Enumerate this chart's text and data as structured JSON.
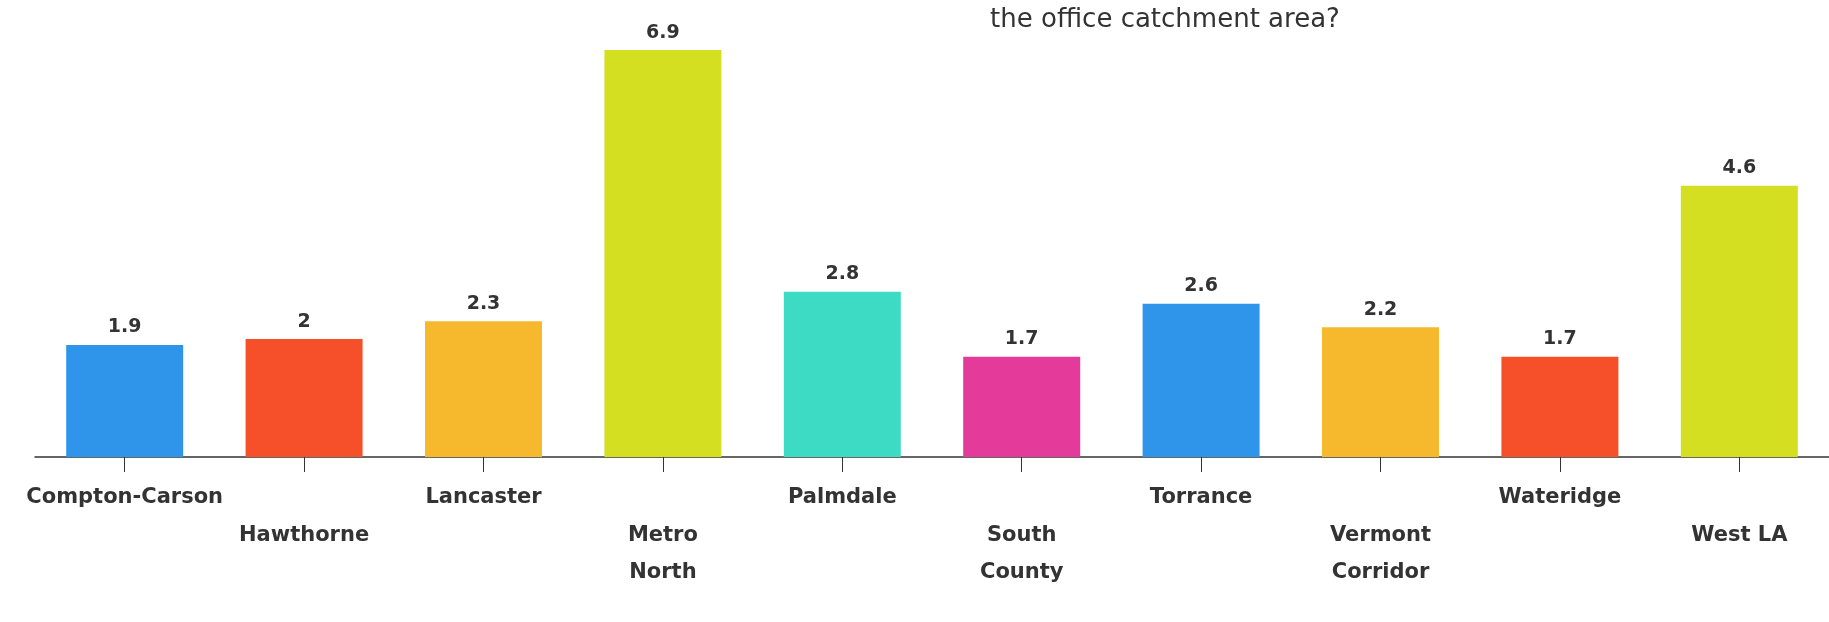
{
  "chart_data": {
    "type": "bar",
    "title": "the office catchment area?",
    "categories": [
      "Compton-Carson",
      "Hawthorne",
      "Lancaster",
      "Metro North",
      "Palmdale",
      "South County",
      "Torrance",
      "Vermont Corridor",
      "Wateridge",
      "West LA"
    ],
    "values": [
      1.9,
      2,
      2.3,
      6.9,
      2.8,
      1.7,
      2.6,
      2.2,
      1.7,
      4.6
    ],
    "colors": [
      "#2e95ea",
      "#f5502a",
      "#f6b82c",
      "#d5df21",
      "#3ddbc3",
      "#e43a9a",
      "#2e95ea",
      "#f6b82c",
      "#f5502a",
      "#d5df21"
    ],
    "data_labels": true
  }
}
